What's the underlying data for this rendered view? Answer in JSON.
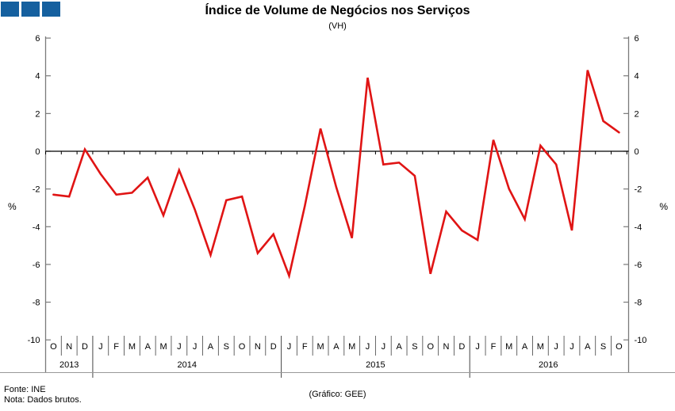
{
  "title": "Índice de Volume de Negócios nos Serviços",
  "subtitle": "(VH)",
  "logo": {
    "color": "#15609F",
    "square_count": 3
  },
  "footer": {
    "source": "Fonte: INE",
    "note": "Nota: Dados brutos.",
    "credit": "(Gráfico: GEE)"
  },
  "chart_data": {
    "type": "line",
    "title": "Índice de Volume de Negócios nos Serviços",
    "subtitle": "(VH)",
    "ylabel": "%",
    "ylabel_right": "%",
    "ylim": [
      -10,
      6
    ],
    "yticks": [
      6,
      4,
      2,
      0,
      -2,
      -4,
      -6,
      -8,
      -10
    ],
    "grid": false,
    "legend": "none",
    "line_color": "#E01414",
    "axis_color": "#7a7a7a",
    "zero_line_color": "#000000",
    "years": [
      {
        "label": "2013",
        "months": [
          "O",
          "N",
          "D"
        ]
      },
      {
        "label": "2014",
        "months": [
          "J",
          "F",
          "M",
          "A",
          "M",
          "J",
          "J",
          "A",
          "S",
          "O",
          "N",
          "D"
        ]
      },
      {
        "label": "2015",
        "months": [
          "J",
          "F",
          "M",
          "A",
          "M",
          "J",
          "J",
          "A",
          "S",
          "O",
          "N",
          "D"
        ]
      },
      {
        "label": "2016",
        "months": [
          "J",
          "F",
          "M",
          "A",
          "M",
          "J",
          "J",
          "A",
          "S",
          "O"
        ]
      }
    ],
    "values": [
      -2.3,
      -2.4,
      0.1,
      -1.2,
      -2.3,
      -2.2,
      -1.4,
      -3.4,
      -1.0,
      -3.1,
      -5.5,
      -2.6,
      -2.4,
      -5.4,
      -4.4,
      -6.6,
      -2.9,
      1.2,
      -1.9,
      -4.6,
      3.9,
      -0.7,
      -0.6,
      -1.3,
      -6.5,
      -3.2,
      -4.2,
      -4.7,
      0.6,
      -2.0,
      -3.6,
      0.3,
      -0.7,
      -4.2,
      4.3,
      1.6,
      1.0
    ]
  }
}
